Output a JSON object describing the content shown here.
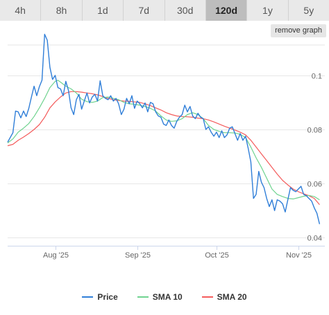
{
  "tabs": [
    {
      "label": "4h",
      "active": false
    },
    {
      "label": "8h",
      "active": false
    },
    {
      "label": "1d",
      "active": false
    },
    {
      "label": "7d",
      "active": false
    },
    {
      "label": "30d",
      "active": false
    },
    {
      "label": "120d",
      "active": true
    },
    {
      "label": "1y",
      "active": false
    },
    {
      "label": "5y",
      "active": false
    }
  ],
  "remove_graph_label": "remove graph",
  "colors": {
    "price": "#2f7ed8",
    "sma10": "#6fd38f",
    "sma20": "#f45b5b",
    "grid": "#e6e6e6"
  },
  "chart_data": {
    "type": "line",
    "title": "",
    "xlabel": "",
    "ylabel": "",
    "ylim": [
      0.037,
      0.112
    ],
    "yticks": [
      0.04,
      0.06,
      0.08,
      0.1
    ],
    "ytick_labels": [
      "0.04",
      "0.06",
      "0.08",
      "0.1"
    ],
    "x_unit": "days",
    "xlim": [
      0,
      120
    ],
    "xticks": [
      {
        "day": 18,
        "label": "Aug '25"
      },
      {
        "day": 49,
        "label": "Sep '25"
      },
      {
        "day": 79,
        "label": "Oct '25"
      },
      {
        "day": 110,
        "label": "Nov '25"
      }
    ],
    "legend_position": "bottom",
    "series": [
      {
        "name": "Price",
        "color": "#2f7ed8",
        "points": [
          [
            0,
            0.0753
          ],
          [
            2,
            0.0788
          ],
          [
            3,
            0.0868
          ],
          [
            4,
            0.0865
          ],
          [
            5,
            0.0843
          ],
          [
            6,
            0.0868
          ],
          [
            7,
            0.0848
          ],
          [
            8,
            0.0878
          ],
          [
            9,
            0.092
          ],
          [
            10,
            0.096
          ],
          [
            11,
            0.0925
          ],
          [
            12,
            0.0958
          ],
          [
            13,
            0.0982
          ],
          [
            14,
            0.1152
          ],
          [
            15,
            0.113
          ],
          [
            16,
            0.103
          ],
          [
            17,
            0.0985
          ],
          [
            18,
            0.1
          ],
          [
            19,
            0.0955
          ],
          [
            20,
            0.095
          ],
          [
            21,
            0.0925
          ],
          [
            22,
            0.0978
          ],
          [
            23,
            0.0945
          ],
          [
            24,
            0.088
          ],
          [
            25,
            0.0855
          ],
          [
            26,
            0.091
          ],
          [
            27,
            0.093
          ],
          [
            28,
            0.0875
          ],
          [
            29,
            0.0905
          ],
          [
            30,
            0.0935
          ],
          [
            31,
            0.0898
          ],
          [
            32,
            0.092
          ],
          [
            33,
            0.093
          ],
          [
            34,
            0.0905
          ],
          [
            35,
            0.098
          ],
          [
            36,
            0.0925
          ],
          [
            37,
            0.0915
          ],
          [
            38,
            0.091
          ],
          [
            39,
            0.0925
          ],
          [
            40,
            0.0905
          ],
          [
            41,
            0.0915
          ],
          [
            42,
            0.0895
          ],
          [
            43,
            0.0855
          ],
          [
            44,
            0.0875
          ],
          [
            45,
            0.0915
          ],
          [
            46,
            0.0895
          ],
          [
            47,
            0.0925
          ],
          [
            48,
            0.0878
          ],
          [
            49,
            0.0905
          ],
          [
            50,
            0.0895
          ],
          [
            51,
            0.088
          ],
          [
            52,
            0.0898
          ],
          [
            53,
            0.0865
          ],
          [
            54,
            0.09
          ],
          [
            55,
            0.0895
          ],
          [
            56,
            0.0865
          ],
          [
            57,
            0.085
          ],
          [
            58,
            0.0845
          ],
          [
            59,
            0.082
          ],
          [
            60,
            0.0815
          ],
          [
            61,
            0.0835
          ],
          [
            62,
            0.0815
          ],
          [
            63,
            0.0805
          ],
          [
            64,
            0.083
          ],
          [
            65,
            0.0845
          ],
          [
            66,
            0.0855
          ],
          [
            67,
            0.089
          ],
          [
            68,
            0.0865
          ],
          [
            69,
            0.0885
          ],
          [
            70,
            0.085
          ],
          [
            71,
            0.084
          ],
          [
            72,
            0.086
          ],
          [
            73,
            0.0845
          ],
          [
            74,
            0.084
          ],
          [
            75,
            0.08
          ],
          [
            76,
            0.081
          ],
          [
            77,
            0.079
          ],
          [
            78,
            0.0775
          ],
          [
            79,
            0.079
          ],
          [
            80,
            0.077
          ],
          [
            81,
            0.0795
          ],
          [
            82,
            0.077
          ],
          [
            83,
            0.078
          ],
          [
            84,
            0.0805
          ],
          [
            85,
            0.081
          ],
          [
            86,
            0.0785
          ],
          [
            87,
            0.076
          ],
          [
            88,
            0.0785
          ],
          [
            89,
            0.076
          ],
          [
            90,
            0.0775
          ],
          [
            91,
            0.073
          ],
          [
            92,
            0.068
          ],
          [
            93,
            0.0545
          ],
          [
            94,
            0.056
          ],
          [
            95,
            0.0645
          ],
          [
            96,
            0.0605
          ],
          [
            97,
            0.0585
          ],
          [
            98,
            0.0545
          ],
          [
            99,
            0.0515
          ],
          [
            100,
            0.054
          ],
          [
            101,
            0.05
          ],
          [
            102,
            0.054
          ],
          [
            103,
            0.0535
          ],
          [
            104,
            0.0525
          ],
          [
            105,
            0.0495
          ],
          [
            106,
            0.054
          ],
          [
            107,
            0.0585
          ],
          [
            108,
            0.0575
          ],
          [
            109,
            0.057
          ],
          [
            110,
            0.058
          ],
          [
            111,
            0.059
          ],
          [
            112,
            0.056
          ],
          [
            113,
            0.0555
          ],
          [
            114,
            0.0545
          ],
          [
            115,
            0.0535
          ],
          [
            116,
            0.051
          ],
          [
            117,
            0.049
          ],
          [
            118,
            0.045
          ]
        ]
      },
      {
        "name": "SMA 10",
        "color": "#6fd38f",
        "points": [
          [
            0,
            0.075
          ],
          [
            2,
            0.0765
          ],
          [
            4,
            0.079
          ],
          [
            6,
            0.0805
          ],
          [
            8,
            0.0822
          ],
          [
            10,
            0.0848
          ],
          [
            12,
            0.088
          ],
          [
            14,
            0.0915
          ],
          [
            16,
            0.0955
          ],
          [
            18,
            0.0978
          ],
          [
            19,
            0.0982
          ],
          [
            20,
            0.0975
          ],
          [
            22,
            0.096
          ],
          [
            24,
            0.095
          ],
          [
            26,
            0.0935
          ],
          [
            28,
            0.0912
          ],
          [
            30,
            0.0903
          ],
          [
            32,
            0.09
          ],
          [
            34,
            0.0905
          ],
          [
            36,
            0.0918
          ],
          [
            38,
            0.092
          ],
          [
            40,
            0.0915
          ],
          [
            42,
            0.091
          ],
          [
            44,
            0.09
          ],
          [
            46,
            0.0895
          ],
          [
            48,
            0.0893
          ],
          [
            50,
            0.089
          ],
          [
            52,
            0.0885
          ],
          [
            54,
            0.0878
          ],
          [
            56,
            0.0868
          ],
          [
            58,
            0.085
          ],
          [
            60,
            0.0835
          ],
          [
            62,
            0.083
          ],
          [
            64,
            0.0832
          ],
          [
            66,
            0.084
          ],
          [
            68,
            0.0855
          ],
          [
            70,
            0.0862
          ],
          [
            72,
            0.0855
          ],
          [
            74,
            0.084
          ],
          [
            76,
            0.0815
          ],
          [
            78,
            0.08
          ],
          [
            80,
            0.0793
          ],
          [
            82,
            0.0788
          ],
          [
            84,
            0.0788
          ],
          [
            86,
            0.0787
          ],
          [
            88,
            0.0782
          ],
          [
            90,
            0.077
          ],
          [
            92,
            0.0735
          ],
          [
            94,
            0.0695
          ],
          [
            96,
            0.066
          ],
          [
            98,
            0.062
          ],
          [
            100,
            0.058
          ],
          [
            102,
            0.056
          ],
          [
            104,
            0.0552
          ],
          [
            106,
            0.0545
          ],
          [
            108,
            0.0543
          ],
          [
            110,
            0.0548
          ],
          [
            112,
            0.0553
          ],
          [
            114,
            0.0556
          ],
          [
            116,
            0.0552
          ],
          [
            118,
            0.054
          ]
        ]
      },
      {
        "name": "SMA 20",
        "color": "#f45b5b",
        "points": [
          [
            0,
            0.074
          ],
          [
            2,
            0.0745
          ],
          [
            4,
            0.076
          ],
          [
            6,
            0.0772
          ],
          [
            8,
            0.0785
          ],
          [
            10,
            0.08
          ],
          [
            12,
            0.0818
          ],
          [
            14,
            0.0845
          ],
          [
            16,
            0.088
          ],
          [
            18,
            0.0902
          ],
          [
            20,
            0.092
          ],
          [
            22,
            0.0935
          ],
          [
            24,
            0.094
          ],
          [
            26,
            0.094
          ],
          [
            28,
            0.0938
          ],
          [
            30,
            0.0935
          ],
          [
            32,
            0.0932
          ],
          [
            34,
            0.0928
          ],
          [
            36,
            0.0922
          ],
          [
            38,
            0.0915
          ],
          [
            40,
            0.091
          ],
          [
            42,
            0.0907
          ],
          [
            44,
            0.0905
          ],
          [
            46,
            0.0904
          ],
          [
            48,
            0.0902
          ],
          [
            50,
            0.09
          ],
          [
            52,
            0.0895
          ],
          [
            54,
            0.0888
          ],
          [
            56,
            0.088
          ],
          [
            58,
            0.0872
          ],
          [
            60,
            0.0862
          ],
          [
            62,
            0.0855
          ],
          [
            64,
            0.085
          ],
          [
            66,
            0.0848
          ],
          [
            68,
            0.0847
          ],
          [
            70,
            0.0845
          ],
          [
            72,
            0.0842
          ],
          [
            74,
            0.084
          ],
          [
            76,
            0.0835
          ],
          [
            78,
            0.0828
          ],
          [
            80,
            0.082
          ],
          [
            82,
            0.0812
          ],
          [
            84,
            0.0805
          ],
          [
            86,
            0.0798
          ],
          [
            88,
            0.079
          ],
          [
            90,
            0.078
          ],
          [
            92,
            0.076
          ],
          [
            94,
            0.0735
          ],
          [
            96,
            0.071
          ],
          [
            98,
            0.0685
          ],
          [
            100,
            0.066
          ],
          [
            102,
            0.0635
          ],
          [
            104,
            0.0612
          ],
          [
            106,
            0.0595
          ],
          [
            108,
            0.058
          ],
          [
            110,
            0.057
          ],
          [
            112,
            0.0562
          ],
          [
            114,
            0.0555
          ],
          [
            116,
            0.0545
          ],
          [
            118,
            0.0522
          ]
        ]
      }
    ]
  }
}
